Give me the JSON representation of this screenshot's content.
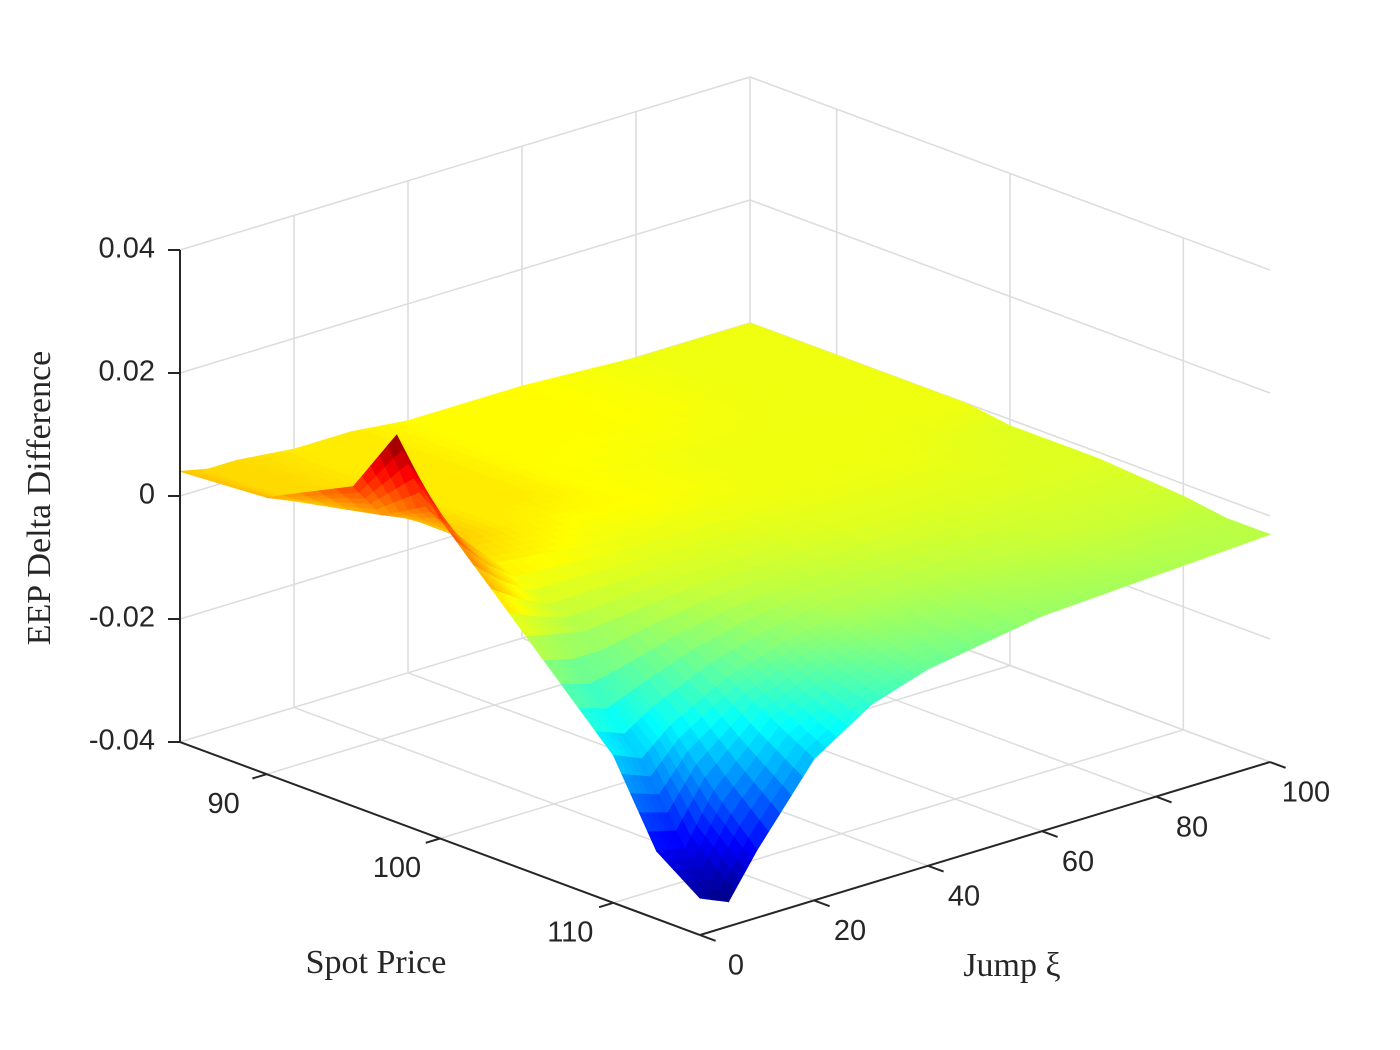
{
  "chart_data": {
    "type": "surface",
    "x_label": "Spot Price",
    "y_label": "Jump ξ",
    "z_label": "EEP Delta Difference",
    "colormap": "jet",
    "grid": true,
    "x": [
      85,
      90,
      95,
      97.5,
      100,
      105,
      110,
      112.5,
      115
    ],
    "y": [
      0,
      5,
      10,
      20,
      30,
      40,
      60,
      80,
      100
    ],
    "z": [
      [
        0.004,
        0.005,
        0.012,
        0.023,
        0.012,
        -0.002,
        -0.016,
        -0.029,
        -0.034
      ],
      [
        0.003,
        0.003,
        0.006,
        0.01,
        0.006,
        -0.003,
        -0.018,
        -0.03,
        -0.036
      ],
      [
        0.003,
        0.003,
        0.004,
        0.004,
        0.002,
        -0.004,
        -0.014,
        -0.022,
        -0.029
      ],
      [
        0.002,
        0.002,
        0.002,
        0.002,
        0.001,
        -0.003,
        -0.009,
        -0.013,
        -0.017
      ],
      [
        0.002,
        0.002,
        0.002,
        0.001,
        0.0,
        -0.002,
        -0.006,
        -0.009,
        -0.011
      ],
      [
        0.001,
        0.001,
        0.001,
        0.001,
        0.0,
        -0.002,
        -0.004,
        -0.006,
        -0.008
      ],
      [
        0.001,
        0.001,
        0.0,
        0.0,
        0.0,
        -0.001,
        -0.003,
        -0.004,
        -0.005
      ],
      [
        0.0,
        0.0,
        0.0,
        0.0,
        0.0,
        -0.001,
        -0.002,
        -0.003,
        -0.004
      ],
      [
        0.0,
        0.0,
        0.0,
        0.0,
        -0.001,
        -0.001,
        -0.002,
        -0.003,
        -0.003
      ]
    ],
    "xlim": [
      85,
      115
    ],
    "ylim": [
      0,
      100
    ],
    "zlim": [
      -0.04,
      0.04
    ],
    "xticks": [
      90,
      100,
      110
    ],
    "yticks": [
      0,
      20,
      40,
      60,
      80,
      100
    ],
    "zticks": [
      -0.04,
      -0.02,
      0,
      0.02,
      0.04
    ]
  }
}
